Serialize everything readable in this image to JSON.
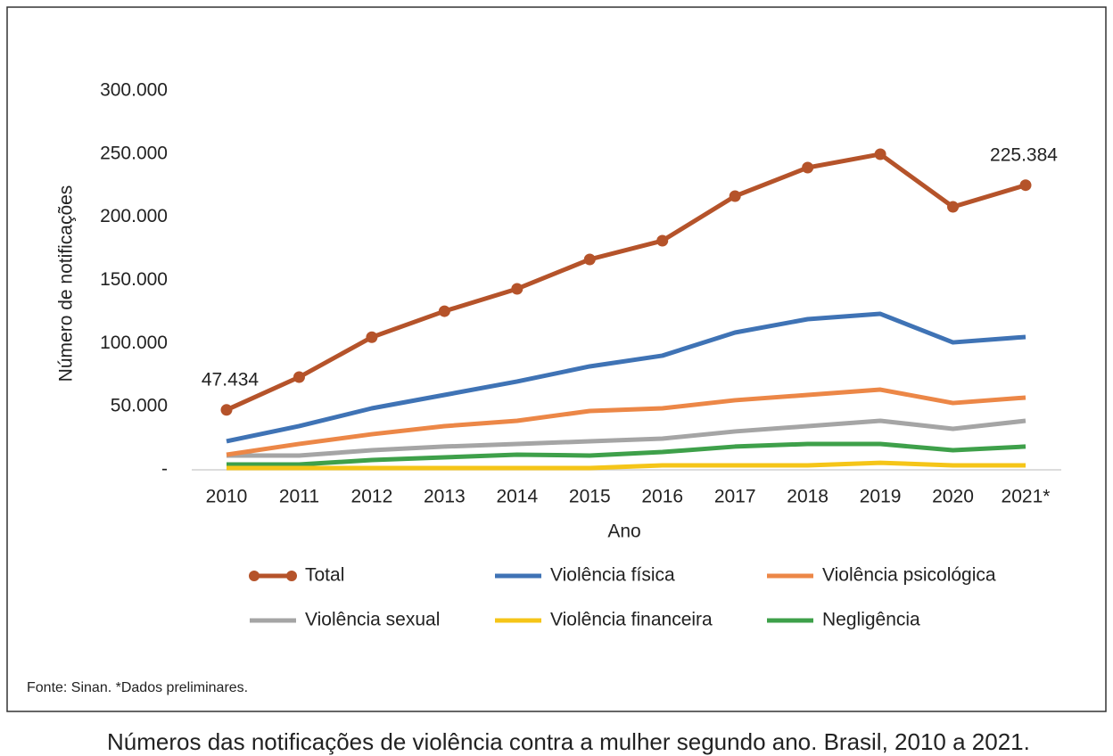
{
  "chart_data": {
    "type": "line",
    "y_label": "Número de notificações",
    "x_label": "Ano",
    "categories": [
      "2010",
      "2011",
      "2012",
      "2013",
      "2014",
      "2015",
      "2016",
      "2017",
      "2018",
      "2019",
      "2020",
      "2021*"
    ],
    "series": [
      {
        "name": "Total",
        "color": "#b5532a",
        "markers": true,
        "values": [
          47434,
          73400,
          105000,
          125600,
          143300,
          166600,
          181400,
          216700,
          239300,
          249900,
          208200,
          225384
        ],
        "value_labels": [
          "47.434",
          null,
          null,
          null,
          null,
          null,
          null,
          null,
          null,
          null,
          null,
          "225.384"
        ]
      },
      {
        "name": "Violência física",
        "color": "#3f73b5",
        "values": [
          22600,
          34600,
          48700,
          59300,
          69900,
          81900,
          90400,
          108700,
          119300,
          123500,
          100900,
          105200
        ]
      },
      {
        "name": "Violência psicológica",
        "color": "#ec8747",
        "values": [
          12000,
          20500,
          28200,
          34600,
          38800,
          46600,
          48700,
          55100,
          59300,
          63500,
          52900,
          57200
        ]
      },
      {
        "name": "Violência sexual",
        "color": "#a5a5a5",
        "values": [
          11300,
          11300,
          15500,
          18400,
          20500,
          22600,
          24700,
          30400,
          34600,
          38800,
          32500,
          38800
        ]
      },
      {
        "name": "Violência financeira",
        "color": "#f5c518",
        "values": [
          1400,
          1400,
          1400,
          1400,
          1400,
          1400,
          3500,
          3500,
          3500,
          5600,
          3500,
          3500
        ]
      },
      {
        "name": "Negligência",
        "color": "#3ea04a",
        "values": [
          4200,
          4200,
          7800,
          9900,
          12000,
          11300,
          14100,
          18400,
          20500,
          20500,
          15500,
          18400
        ]
      }
    ],
    "ylim": [
      0,
      300000
    ],
    "yticks": [
      {
        "value": 0,
        "label": "-"
      },
      {
        "value": 50000,
        "label": "50.000"
      },
      {
        "value": 100000,
        "label": "100.000"
      },
      {
        "value": 150000,
        "label": "150.000"
      },
      {
        "value": 200000,
        "label": "200.000"
      },
      {
        "value": 250000,
        "label": "250.000"
      },
      {
        "value": 300000,
        "label": "300.000"
      }
    ],
    "source": "Fonte: Sinan. *Dados preliminares.",
    "caption": "Números das notificações de violência contra a mulher segundo ano. Brasil, 2010 a 2021."
  }
}
